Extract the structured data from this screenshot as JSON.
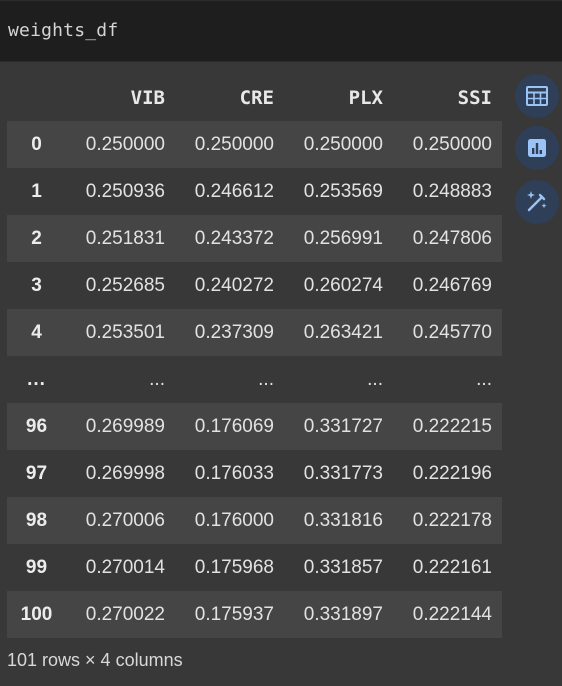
{
  "code_cell": {
    "source": "weights_df"
  },
  "dataframe": {
    "columns": [
      "",
      "VIB",
      "CRE",
      "PLX",
      "SSI"
    ],
    "rows": [
      {
        "index": "0",
        "cells": [
          "0.250000",
          "0.250000",
          "0.250000",
          "0.250000"
        ]
      },
      {
        "index": "1",
        "cells": [
          "0.250936",
          "0.246612",
          "0.253569",
          "0.248883"
        ]
      },
      {
        "index": "2",
        "cells": [
          "0.251831",
          "0.243372",
          "0.256991",
          "0.247806"
        ]
      },
      {
        "index": "3",
        "cells": [
          "0.252685",
          "0.240272",
          "0.260274",
          "0.246769"
        ]
      },
      {
        "index": "4",
        "cells": [
          "0.253501",
          "0.237309",
          "0.263421",
          "0.245770"
        ]
      },
      {
        "index": "...",
        "cells": [
          "...",
          "...",
          "...",
          "..."
        ]
      },
      {
        "index": "96",
        "cells": [
          "0.269989",
          "0.176069",
          "0.331727",
          "0.222215"
        ]
      },
      {
        "index": "97",
        "cells": [
          "0.269998",
          "0.176033",
          "0.331773",
          "0.222196"
        ]
      },
      {
        "index": "98",
        "cells": [
          "0.270006",
          "0.176000",
          "0.331816",
          "0.222178"
        ]
      },
      {
        "index": "99",
        "cells": [
          "0.270014",
          "0.175968",
          "0.331857",
          "0.222161"
        ]
      },
      {
        "index": "100",
        "cells": [
          "0.270022",
          "0.175937",
          "0.331897",
          "0.222144"
        ]
      }
    ],
    "summary": "101 rows × 4 columns"
  },
  "side_actions": [
    {
      "icon": "table-icon"
    },
    {
      "icon": "bar-chart-icon"
    },
    {
      "icon": "magic-wand-icon"
    }
  ],
  "colors": {
    "background": "#383838",
    "code_background": "#1e1e1e",
    "stripe": "#454545",
    "action_button": "#2f3f57",
    "action_icon": "#9cc3f5"
  }
}
